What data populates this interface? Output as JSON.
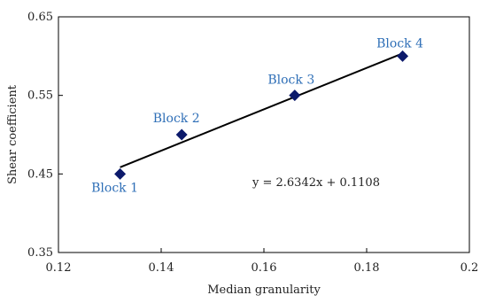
{
  "chart_data": {
    "type": "scatter",
    "xlabel": "Median granularity",
    "ylabel": "Shear coefficient",
    "xlim": [
      0.12,
      0.2
    ],
    "ylim": [
      0.35,
      0.65
    ],
    "x_ticks": [
      "0.12",
      "0.14",
      "0.16",
      "0.18",
      "0.2"
    ],
    "y_ticks": [
      "0.35",
      "0.45",
      "0.55",
      "0.65"
    ],
    "grid": false,
    "series": [
      {
        "points": [
          {
            "x": 0.132,
            "y": 0.45,
            "label": "Block 1"
          },
          {
            "x": 0.144,
            "y": 0.5,
            "label": "Block 2"
          },
          {
            "x": 0.166,
            "y": 0.55,
            "label": "Block 3"
          },
          {
            "x": 0.187,
            "y": 0.6,
            "label": "Block 4"
          }
        ]
      }
    ],
    "trendline": {
      "slope": 2.6342,
      "intercept": 0.1108,
      "x_range": [
        0.132,
        0.187
      ],
      "equation": "y = 2.6342x + 0.1108"
    },
    "colors": {
      "marker": "#0c1a6b",
      "label": "#2f6fb7",
      "line": "#000000"
    }
  }
}
